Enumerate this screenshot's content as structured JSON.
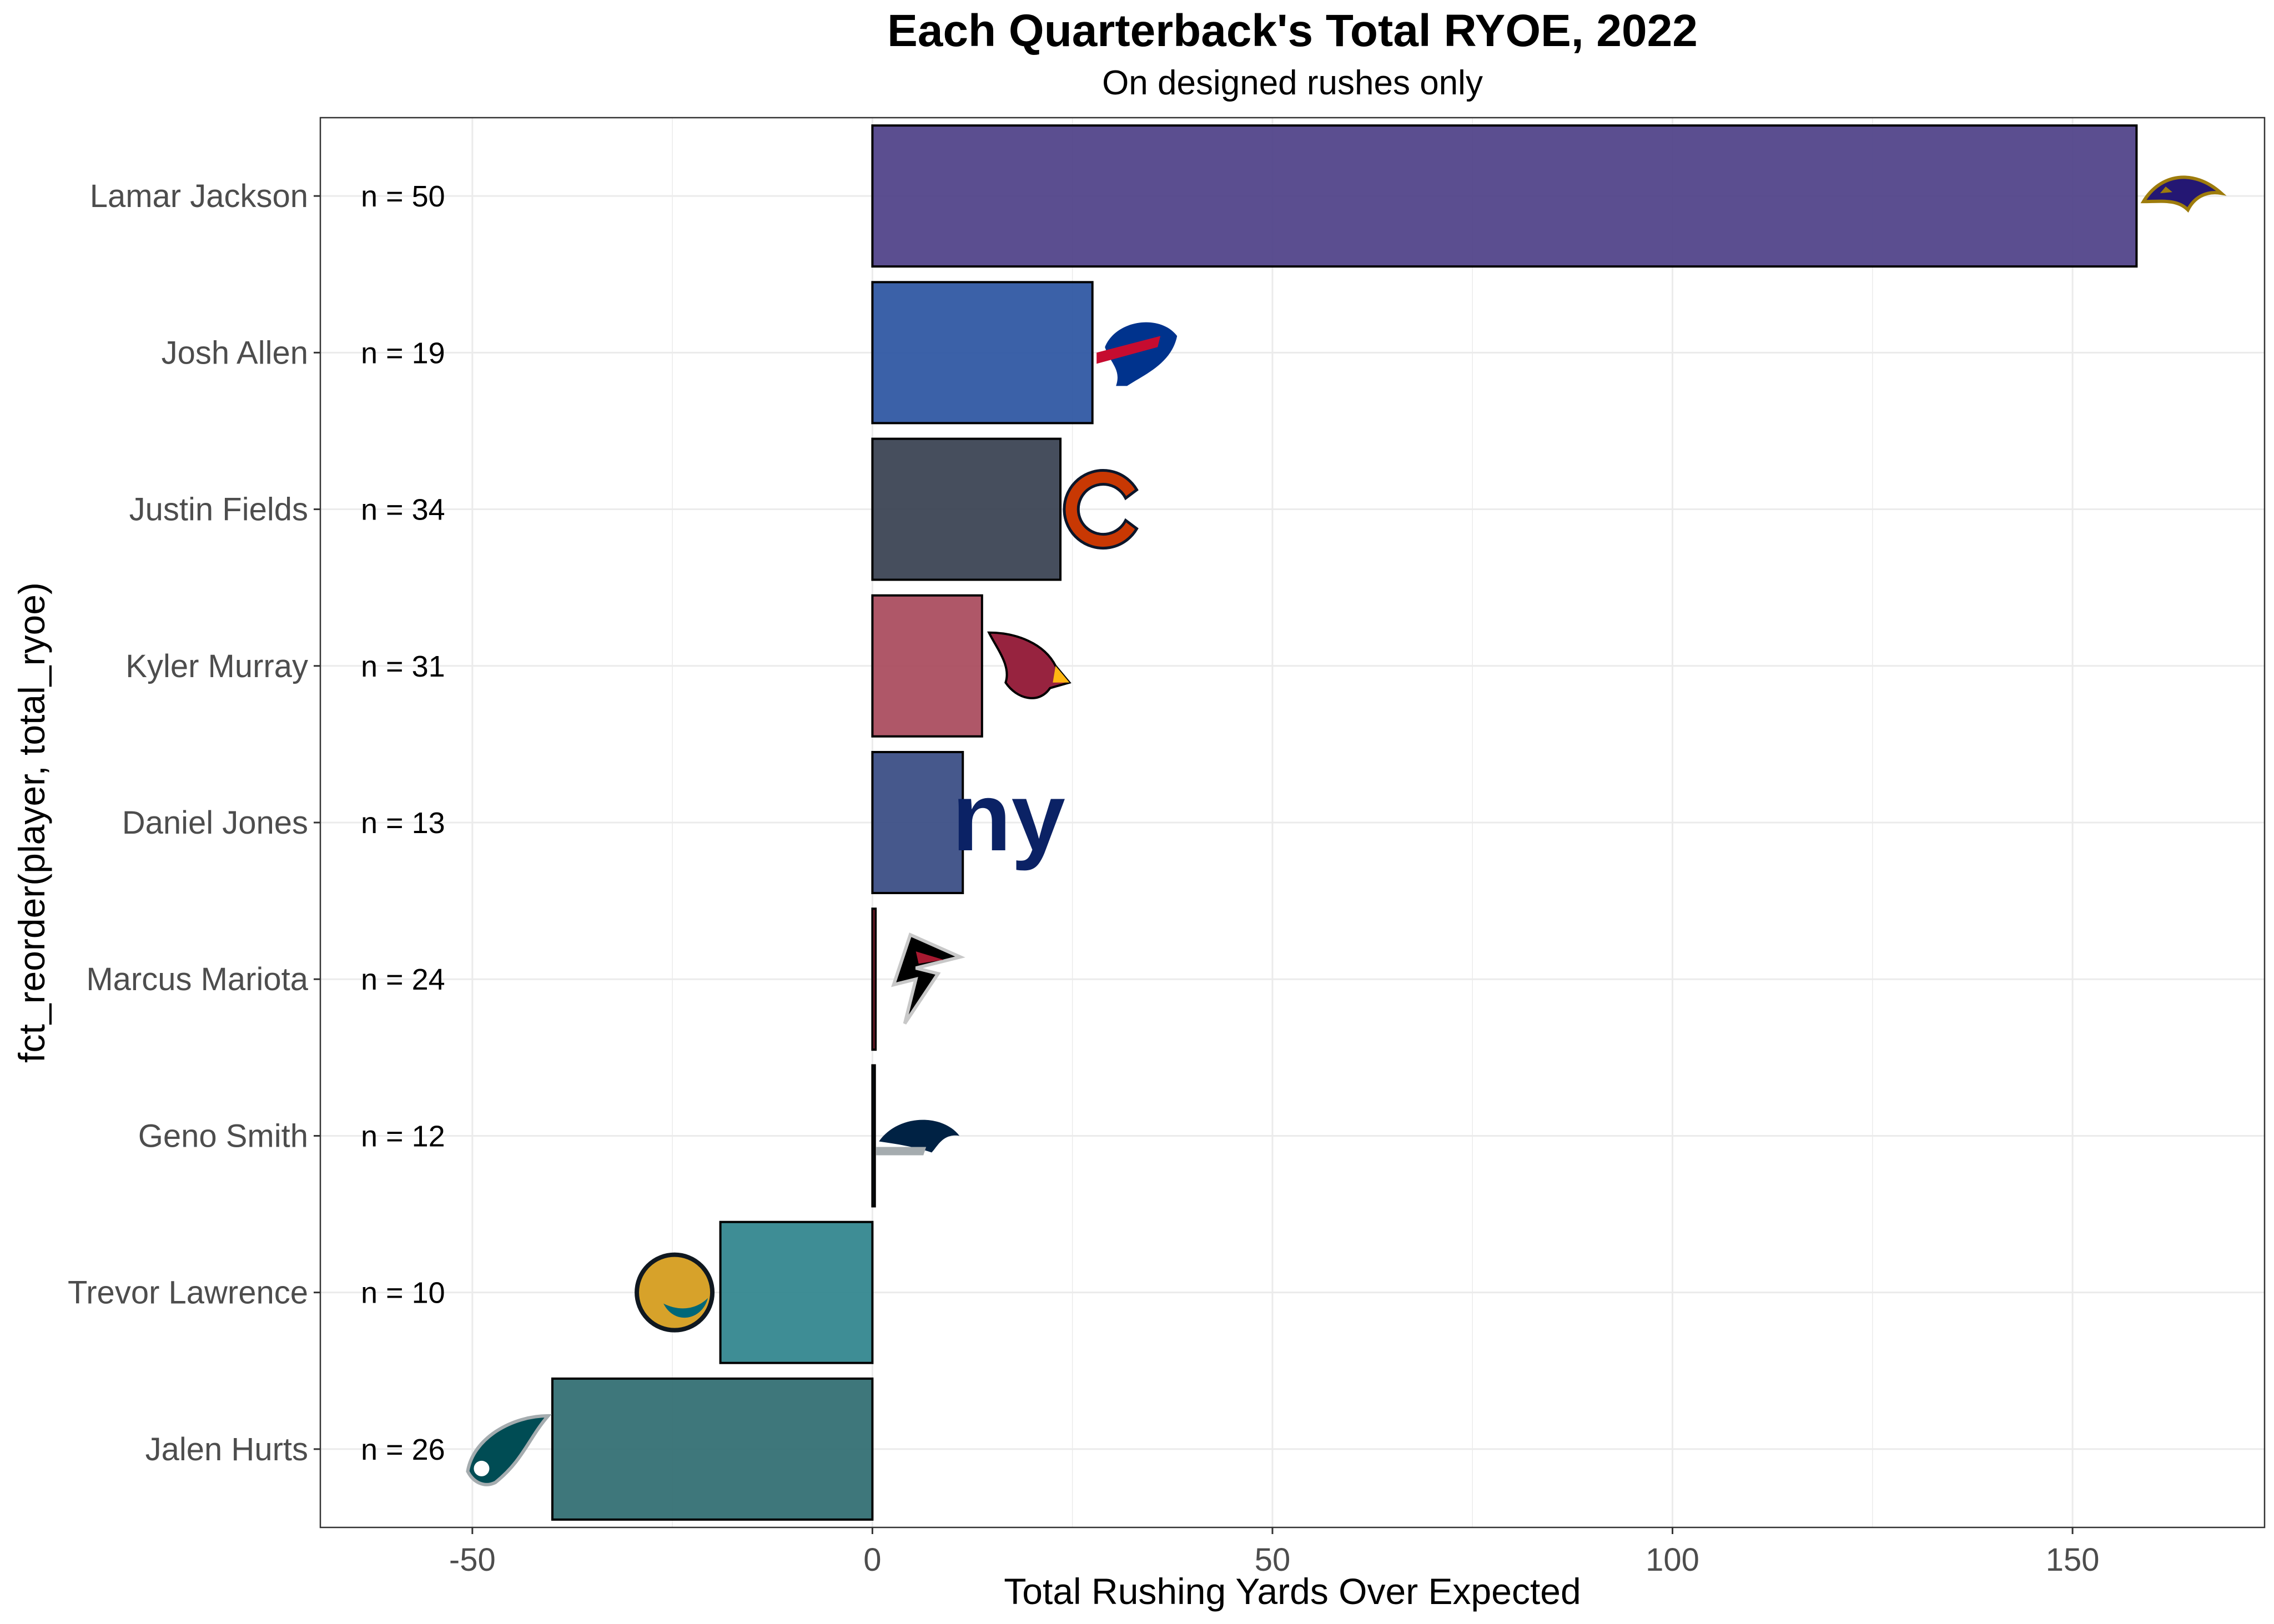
{
  "chart_data": {
    "type": "bar",
    "orientation": "horizontal",
    "title": "Each Quarterback's Total RYOE, 2022",
    "subtitle": "On designed rushes only",
    "xlabel": "Total Rushing Yards Over Expected",
    "ylabel": "fct_reorder(player, total_ryoe)",
    "xlim": [
      -69,
      174
    ],
    "xticks": [
      -50,
      0,
      50,
      100,
      150
    ],
    "grid": true,
    "categories": [
      "Lamar Jackson",
      "Josh Allen",
      "Justin Fields",
      "Kyler Murray",
      "Daniel Jones",
      "Marcus Mariota",
      "Geno Smith",
      "Trevor Lawrence",
      "Jalen Hurts"
    ],
    "values": [
      158,
      27.5,
      23.5,
      13.7,
      11.3,
      0.4,
      0.3,
      -19,
      -40
    ],
    "n_labels": [
      "n = 50",
      "n = 19",
      "n = 34",
      "n = 31",
      "n = 13",
      "n = 24",
      "n = 12",
      "n = 10",
      "n = 26"
    ],
    "team_icons": [
      "ravens-logo-icon",
      "bills-logo-icon",
      "bears-logo-icon",
      "cardinals-logo-icon",
      "giants-logo-icon",
      "falcons-logo-icon",
      "seahawks-logo-icon",
      "jaguars-logo-icon",
      "eagles-logo-icon"
    ],
    "colors": [
      "#52448a",
      "#3059a3",
      "#3c4554",
      "#ab4e60",
      "#3c4f86",
      "#9b1a2f",
      "#15304d",
      "#34878f",
      "#347074"
    ]
  }
}
